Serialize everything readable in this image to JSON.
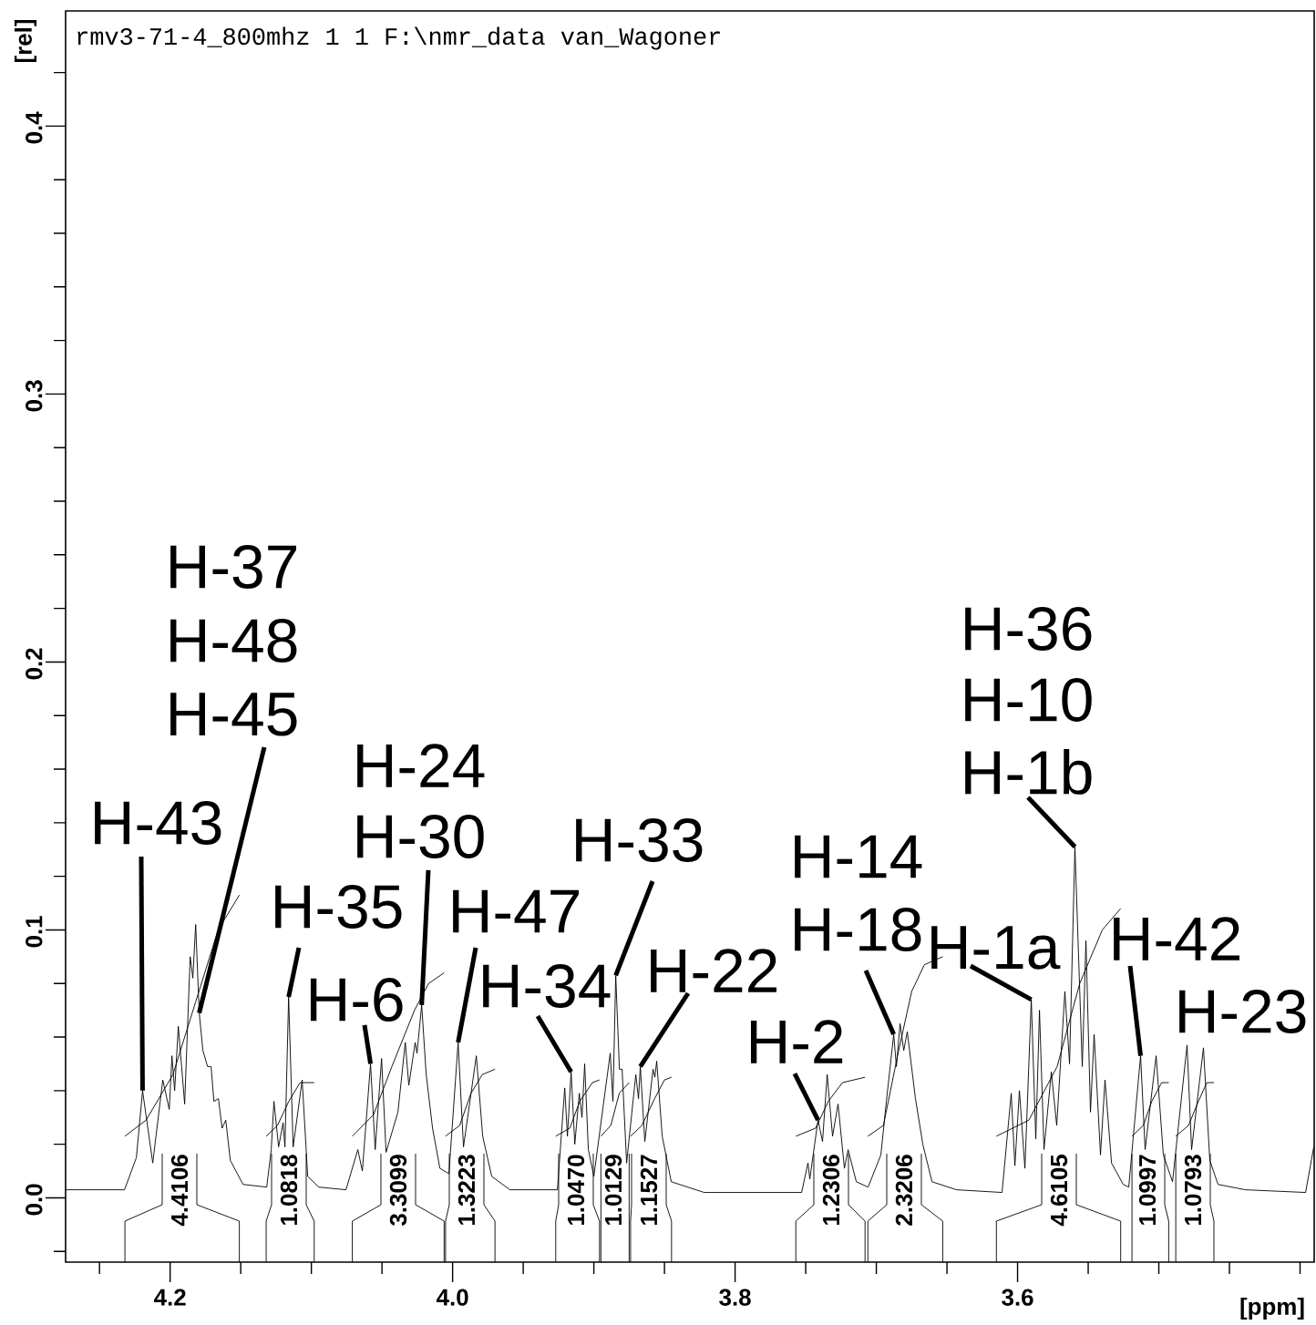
{
  "chart_data": {
    "type": "line",
    "xlabel": "[ppm]",
    "ylabel": "[rel]",
    "xlim": [
      4.274,
      3.39
    ],
    "ylim": [
      -0.024,
      0.443
    ],
    "xticks": [
      {
        "value": 4.25,
        "label": null
      },
      {
        "value": 4.2,
        "label": "4.2"
      },
      {
        "value": 4.15,
        "label": null
      },
      {
        "value": 4.1,
        "label": null
      },
      {
        "value": 4.05,
        "label": null
      },
      {
        "value": 4.0,
        "label": "4.0"
      },
      {
        "value": 3.95,
        "label": null
      },
      {
        "value": 3.9,
        "label": null
      },
      {
        "value": 3.85,
        "label": null
      },
      {
        "value": 3.8,
        "label": "3.8"
      },
      {
        "value": 3.75,
        "label": null
      },
      {
        "value": 3.7,
        "label": null
      },
      {
        "value": 3.65,
        "label": null
      },
      {
        "value": 3.6,
        "label": "3.6"
      },
      {
        "value": 3.55,
        "label": null
      },
      {
        "value": 3.5,
        "label": null
      },
      {
        "value": 3.45,
        "label": null
      },
      {
        "value": 3.4,
        "label": null
      }
    ],
    "yticks": [
      {
        "value": -0.02,
        "label": null
      },
      {
        "value": 0.0,
        "label": "0.0"
      },
      {
        "value": 0.02,
        "label": null
      },
      {
        "value": 0.04,
        "label": null
      },
      {
        "value": 0.06,
        "label": null
      },
      {
        "value": 0.08,
        "label": null
      },
      {
        "value": 0.1,
        "label": "0.1"
      },
      {
        "value": 0.12,
        "label": null
      },
      {
        "value": 0.14,
        "label": null
      },
      {
        "value": 0.16,
        "label": null
      },
      {
        "value": 0.18,
        "label": null
      },
      {
        "value": 0.2,
        "label": "0.2"
      },
      {
        "value": 0.22,
        "label": null
      },
      {
        "value": 0.24,
        "label": null
      },
      {
        "value": 0.26,
        "label": null
      },
      {
        "value": 0.28,
        "label": null
      },
      {
        "value": 0.3,
        "label": "0.3"
      },
      {
        "value": 0.32,
        "label": null
      },
      {
        "value": 0.34,
        "label": null
      },
      {
        "value": 0.36,
        "label": null
      },
      {
        "value": 0.38,
        "label": null
      },
      {
        "value": 0.4,
        "label": "0.4"
      },
      {
        "value": 0.42,
        "label": null
      }
    ],
    "series": [
      {
        "color": "#000000",
        "x": [
          4.274,
          4.2323,
          4.2239,
          4.2195,
          4.2123,
          4.2052,
          4.2006,
          4.1987,
          4.1968,
          4.1942,
          4.1897,
          4.1858,
          4.1839,
          4.1819,
          4.1794,
          4.1768,
          4.1735,
          4.171,
          4.169,
          4.1658,
          4.1632,
          4.1606,
          4.1574,
          4.1484,
          4.1316,
          4.1284,
          4.1265,
          4.1232,
          4.12,
          4.1187,
          4.1161,
          4.1129,
          4.1065,
          4.1026,
          4.0948,
          4.0755,
          4.0671,
          4.0639,
          4.0581,
          4.0548,
          4.0503,
          4.0471,
          4.0387,
          4.0335,
          4.031,
          4.0265,
          4.0252,
          4.0219,
          4.0187,
          4.0142,
          4.009,
          4.0026,
          3.9961,
          3.9923,
          3.9832,
          3.9787,
          3.9723,
          3.9594,
          3.9258,
          3.9206,
          3.9187,
          3.9161,
          3.9135,
          3.9103,
          3.9084,
          3.9065,
          3.9039,
          3.9,
          3.8884,
          3.8865,
          3.8845,
          3.8819,
          3.88,
          3.8768,
          3.8703,
          3.8684,
          3.8671,
          3.8639,
          3.8581,
          3.8568,
          3.8555,
          3.8516,
          3.8452,
          3.8219,
          3.7529,
          3.7484,
          3.7471,
          3.7413,
          3.7381,
          3.7348,
          3.731,
          3.7271,
          3.7226,
          3.72,
          3.7142,
          3.7058,
          3.6968,
          3.6929,
          3.6877,
          3.6858,
          3.6832,
          3.6806,
          3.6781,
          3.6723,
          3.6671,
          3.6606,
          3.6432,
          3.611,
          3.6045,
          3.6019,
          3.5987,
          3.5948,
          3.5903,
          3.5871,
          3.5845,
          3.5813,
          3.5761,
          3.5723,
          3.5665,
          3.5632,
          3.5594,
          3.5542,
          3.5516,
          3.5484,
          3.5458,
          3.5413,
          3.5381,
          3.5335,
          3.5252,
          3.5213,
          3.5129,
          3.5097,
          3.5019,
          3.4968,
          3.4903,
          3.48,
          3.4768,
          3.4684,
          3.4639,
          3.4581,
          3.4387,
          3.3961,
          3.3903
        ],
        "values": [
          0.003,
          0.003,
          0.015,
          0.04,
          0.013,
          0.044,
          0.033,
          0.053,
          0.04,
          0.064,
          0.035,
          0.09,
          0.082,
          0.102,
          0.069,
          0.055,
          0.049,
          0.049,
          0.036,
          0.037,
          0.026,
          0.029,
          0.014,
          0.005,
          0.004,
          0.018,
          0.036,
          0.019,
          0.028,
          0.019,
          0.075,
          0.019,
          0.044,
          0.008,
          0.004,
          0.003,
          0.018,
          0.01,
          0.05,
          0.018,
          0.052,
          0.017,
          0.032,
          0.058,
          0.042,
          0.058,
          0.054,
          0.072,
          0.046,
          0.026,
          0.011,
          0.009,
          0.058,
          0.019,
          0.053,
          0.023,
          0.008,
          0.003,
          0.003,
          0.041,
          0.023,
          0.047,
          0.02,
          0.039,
          0.03,
          0.05,
          0.018,
          0.008,
          0.054,
          0.036,
          0.083,
          0.048,
          0.048,
          0.013,
          0.046,
          0.037,
          0.049,
          0.021,
          0.048,
          0.045,
          0.051,
          0.023,
          0.006,
          0.002,
          0.002,
          0.013,
          0.007,
          0.029,
          0.021,
          0.046,
          0.023,
          0.035,
          0.011,
          0.018,
          0.006,
          0.004,
          0.016,
          0.036,
          0.061,
          0.049,
          0.065,
          0.055,
          0.062,
          0.037,
          0.02,
          0.006,
          0.003,
          0.002,
          0.039,
          0.012,
          0.04,
          0.011,
          0.074,
          0.022,
          0.07,
          0.018,
          0.047,
          0.027,
          0.077,
          0.05,
          0.131,
          0.049,
          0.096,
          0.032,
          0.061,
          0.016,
          0.044,
          0.013,
          0.005,
          0.004,
          0.053,
          0.018,
          0.053,
          0.016,
          0.006,
          0.057,
          0.018,
          0.056,
          0.014,
          0.005,
          0.003,
          0.002,
          0.019
        ]
      },
      {
        "color": "#000000",
        "x": [
          4.232,
          4.217,
          4.198,
          4.182,
          4.166,
          4.151
        ],
        "values": [
          0.023,
          0.029,
          0.046,
          0.073,
          0.1,
          0.113
        ]
      },
      {
        "color": "#000000",
        "x": [
          4.132,
          4.124,
          4.116,
          4.108,
          4.098
        ],
        "values": [
          0.023,
          0.027,
          0.036,
          0.043,
          0.043
        ]
      },
      {
        "color": "#000000",
        "x": [
          4.071,
          4.056,
          4.043,
          4.027,
          4.017,
          4.006
        ],
        "values": [
          0.023,
          0.031,
          0.049,
          0.07,
          0.08,
          0.084
        ]
      },
      {
        "color": "#000000",
        "x": [
          4.005,
          3.995,
          3.987,
          3.979,
          3.97
        ],
        "values": [
          0.023,
          0.027,
          0.039,
          0.046,
          0.048
        ]
      },
      {
        "color": "#000000",
        "x": [
          3.927,
          3.917,
          3.91,
          3.901,
          3.896
        ],
        "values": [
          0.023,
          0.026,
          0.036,
          0.043,
          0.044
        ]
      },
      {
        "color": "#000000",
        "x": [
          3.895,
          3.888,
          3.882,
          3.875
        ],
        "values": [
          0.023,
          0.027,
          0.039,
          0.043
        ]
      },
      {
        "color": "#000000",
        "x": [
          3.874,
          3.866,
          3.857,
          3.85,
          3.845
        ],
        "values": [
          0.023,
          0.027,
          0.037,
          0.044,
          0.045
        ]
      },
      {
        "color": "#000000",
        "x": [
          3.757,
          3.743,
          3.734,
          3.724,
          3.708
        ],
        "values": [
          0.023,
          0.026,
          0.036,
          0.043,
          0.045
        ]
      },
      {
        "color": "#000000",
        "x": [
          3.706,
          3.695,
          3.685,
          3.675,
          3.666,
          3.653
        ],
        "values": [
          0.023,
          0.027,
          0.053,
          0.077,
          0.087,
          0.09
        ]
      },
      {
        "color": "#000000",
        "x": [
          3.615,
          3.592,
          3.572,
          3.556,
          3.54,
          3.527
        ],
        "values": [
          0.023,
          0.029,
          0.049,
          0.08,
          0.1,
          0.108
        ]
      },
      {
        "color": "#000000",
        "x": [
          3.519,
          3.511,
          3.505,
          3.498,
          3.493
        ],
        "values": [
          0.023,
          0.027,
          0.036,
          0.043,
          0.043
        ]
      },
      {
        "color": "#000000",
        "x": [
          3.488,
          3.479,
          3.472,
          3.466,
          3.461
        ],
        "values": [
          0.023,
          0.027,
          0.036,
          0.043,
          0.043
        ]
      }
    ],
    "annotations": [
      "rmv3-71-4_800mhz  1  1  F:\\nmr_data  van_Wagoner",
      {
        "text": "H-43",
        "x": 4.2195,
        "y": 0.04
      },
      "H-37",
      "H-48",
      {
        "text": "H-45",
        "x": 4.1794,
        "y": 0.069
      },
      {
        "text": "H-35",
        "x": 4.1161,
        "y": 0.075
      },
      {
        "text": "H-6",
        "x": 4.0581,
        "y": 0.05
      },
      "H-24",
      {
        "text": "H-30",
        "x": 4.0219,
        "y": 0.072
      },
      {
        "text": "H-47",
        "x": 3.9961,
        "y": 0.058
      },
      {
        "text": "H-34",
        "x": 3.9161,
        "y": 0.047
      },
      {
        "text": "H-33",
        "x": 3.8845,
        "y": 0.083
      },
      {
        "text": "H-22",
        "x": 3.8671,
        "y": 0.049
      },
      {
        "text": "H-2",
        "x": 3.7413,
        "y": 0.029
      },
      "H-14",
      {
        "text": "H-18",
        "x": 3.6877,
        "y": 0.061
      },
      {
        "text": "H-1a",
        "x": 3.5903,
        "y": 0.074
      },
      "H-36",
      "H-10",
      {
        "text": "H-1b",
        "x": 3.5594,
        "y": 0.131
      },
      {
        "text": "H-42",
        "x": 3.5129,
        "y": 0.053
      },
      "H-23",
      "4.4106",
      "1.0818",
      "3.3099",
      "1.3223",
      "1.0470",
      "1.0129",
      "1.1527",
      "1.2306",
      "2.3206",
      "4.6105",
      "1.0997",
      "1.0793"
    ]
  }
}
